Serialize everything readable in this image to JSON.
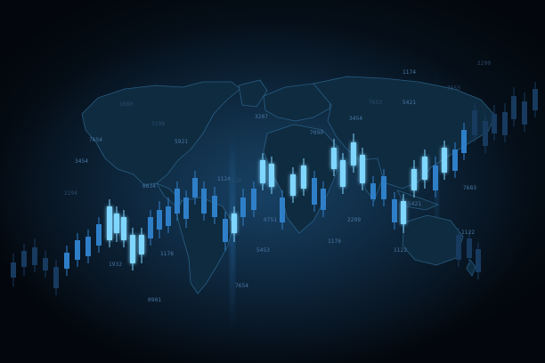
{
  "labels": [
    "1174",
    "2299",
    "7653",
    "5421",
    "3454",
    "7653",
    "3207",
    "7090",
    "1080",
    "3299",
    "5921",
    "7654",
    "3454",
    "1124",
    "7683",
    "1128",
    "2294",
    "6634",
    "1122",
    "0751",
    "5421",
    "2299",
    "1176",
    "1122",
    "5453",
    "1176",
    "1932",
    "7654",
    "0901"
  ],
  "colors": {
    "background": "#03070d",
    "candle_bright": "#7fd6ff",
    "candle_mid": "#2f7fc8",
    "candle_dim": "#173a5e",
    "map_fill": "#0f2b40",
    "map_edge": "#2f6b93"
  }
}
